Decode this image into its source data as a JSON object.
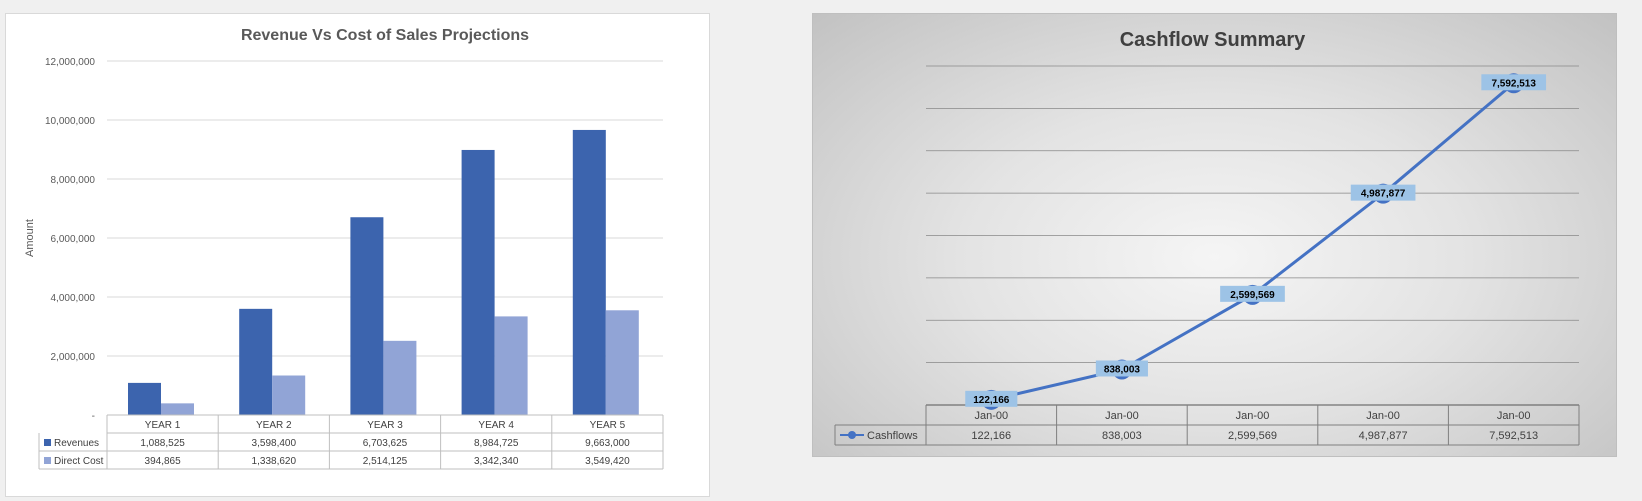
{
  "charts": [
    {
      "type": "bar",
      "title": "Revenue Vs Cost of Sales Projections",
      "ylabel": "Amount",
      "xlabel": "",
      "ylim": [
        0,
        12000000
      ],
      "yticks": [
        {
          "value": 0,
          "label": "-"
        },
        {
          "value": 2000000,
          "label": "2,000,000"
        },
        {
          "value": 4000000,
          "label": "4,000,000"
        },
        {
          "value": 6000000,
          "label": "6,000,000"
        },
        {
          "value": 8000000,
          "label": "8,000,000"
        },
        {
          "value": 10000000,
          "label": "10,000,000"
        },
        {
          "value": 12000000,
          "label": "12,000,000"
        }
      ],
      "categories": [
        "YEAR 1",
        "YEAR 2",
        "YEAR 3",
        "YEAR 4",
        "YEAR 5"
      ],
      "series": [
        {
          "name": "Revenues",
          "color": "#3c64ae",
          "values": [
            1088525,
            3598400,
            6703625,
            8984725,
            9663000
          ],
          "labels": [
            "1,088,525",
            "3,598,400",
            "6,703,625",
            "8,984,725",
            "9,663,000"
          ]
        },
        {
          "name": "Direct Cost",
          "color": "#91a4d6",
          "values": [
            394865,
            1338620,
            2514125,
            3342340,
            3549420
          ],
          "labels": [
            "394,865",
            "1,338,620",
            "2,514,125",
            "3,342,340",
            "3,549,420"
          ]
        }
      ],
      "grid": true,
      "data_table": true
    },
    {
      "type": "line",
      "title": "Cashflow Summary",
      "ylim": [
        0,
        8000000
      ],
      "categories": [
        "Jan-00",
        "Jan-00",
        "Jan-00",
        "Jan-00",
        "Jan-00"
      ],
      "series": [
        {
          "name": "Cashflows",
          "color": "#4472c4",
          "values": [
            122166,
            838003,
            2599569,
            4987877,
            7592513
          ],
          "labels": [
            "122,166",
            "838,003",
            "2,599,569",
            "4,987,877",
            "7,592,513"
          ]
        }
      ],
      "data_label_color": "#9dc3e6",
      "grid": true,
      "data_table": true
    }
  ]
}
